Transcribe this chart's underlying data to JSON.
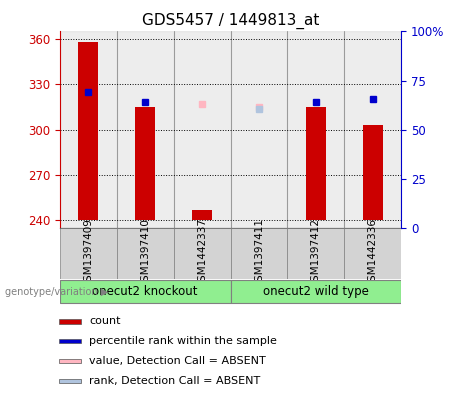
{
  "title": "GDS5457 / 1449813_at",
  "samples": [
    "GSM1397409",
    "GSM1397410",
    "GSM1442337",
    "GSM1397411",
    "GSM1397412",
    "GSM1442336"
  ],
  "count_values": [
    358,
    315,
    247,
    240,
    315,
    303
  ],
  "rank_values": [
    325,
    318,
    null,
    null,
    318,
    320
  ],
  "absent_value": [
    null,
    null,
    317,
    315,
    null,
    null
  ],
  "absent_rank": [
    null,
    null,
    null,
    314,
    null,
    null
  ],
  "ylim_left": [
    235,
    365
  ],
  "yticks_left": [
    240,
    270,
    300,
    330,
    360
  ],
  "yticks_right": [
    0,
    25,
    50,
    75,
    100
  ],
  "right_tick_labels": [
    "0",
    "25",
    "50",
    "75",
    "100%"
  ],
  "bar_color": "#CC0000",
  "rank_color": "#0000CC",
  "absent_value_color": "#FFB6C1",
  "absent_rank_color": "#B0C4DE",
  "count_bar_bottom": 240,
  "group_boundaries": [
    [
      0,
      3,
      "onecut2 knockout"
    ],
    [
      3,
      6,
      "onecut2 wild type"
    ]
  ],
  "group_bg_color": "#90EE90",
  "sample_bg_color": "#D3D3D3",
  "legend_items": [
    {
      "label": "count",
      "color": "#CC0000"
    },
    {
      "label": "percentile rank within the sample",
      "color": "#0000CC"
    },
    {
      "label": "value, Detection Call = ABSENT",
      "color": "#FFB6C1"
    },
    {
      "label": "rank, Detection Call = ABSENT",
      "color": "#B0C4DE"
    }
  ],
  "ylabel_left_color": "#CC0000",
  "ylabel_right_color": "#0000CC",
  "title_fontsize": 11,
  "tick_fontsize": 8.5,
  "legend_fontsize": 8
}
